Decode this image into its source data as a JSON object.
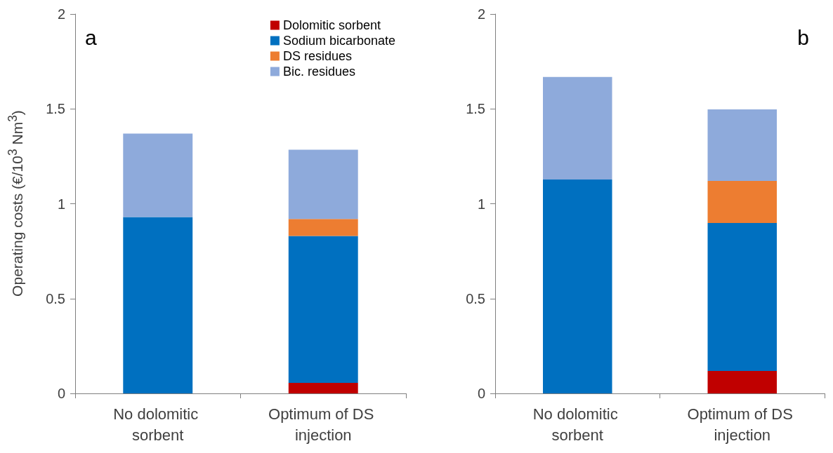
{
  "chart_data": [
    {
      "type": "bar",
      "stacked": true,
      "ylabel": "Operating costs (€/10$^{3}$ Nm$^{3}$)",
      "annotations": [
        "a"
      ],
      "categories": [
        "No dolomitic sorbent",
        "Optimum of DS injection"
      ],
      "ylim": [
        0,
        2
      ],
      "yticks": [
        0,
        0.5,
        1,
        1.5,
        2
      ],
      "grid": false,
      "legend": "top right",
      "series": [
        {
          "name": "Dolomitic sorbent",
          "color": "#c00000",
          "values": [
            0,
            0.055
          ]
        },
        {
          "name": "Sodium bicarbonate",
          "color": "#0070c0",
          "values": [
            0.93,
            0.775
          ]
        },
        {
          "name": "DS residues",
          "color": "#ed7d31",
          "values": [
            0,
            0.09
          ]
        },
        {
          "name": "Bic. residues",
          "color": "#8eaadb",
          "values": [
            0.44,
            0.365
          ]
        }
      ]
    },
    {
      "type": "bar",
      "stacked": true,
      "annotations": [
        "b"
      ],
      "categories": [
        "No dolomitic sorbent",
        "Optimum of DS injection"
      ],
      "ylim": [
        0,
        2
      ],
      "yticks": [
        0,
        0.5,
        1,
        1.5,
        2
      ],
      "grid": false,
      "series": [
        {
          "color": "#c00000",
          "values": [
            0,
            0.118
          ]
        },
        {
          "color": "#0070c0",
          "values": [
            1.128,
            0.78
          ]
        },
        {
          "color": "#ed7d31",
          "values": [
            0,
            0.222
          ]
        },
        {
          "color": "#8eaadb",
          "values": [
            0.54,
            0.377
          ]
        }
      ]
    }
  ]
}
